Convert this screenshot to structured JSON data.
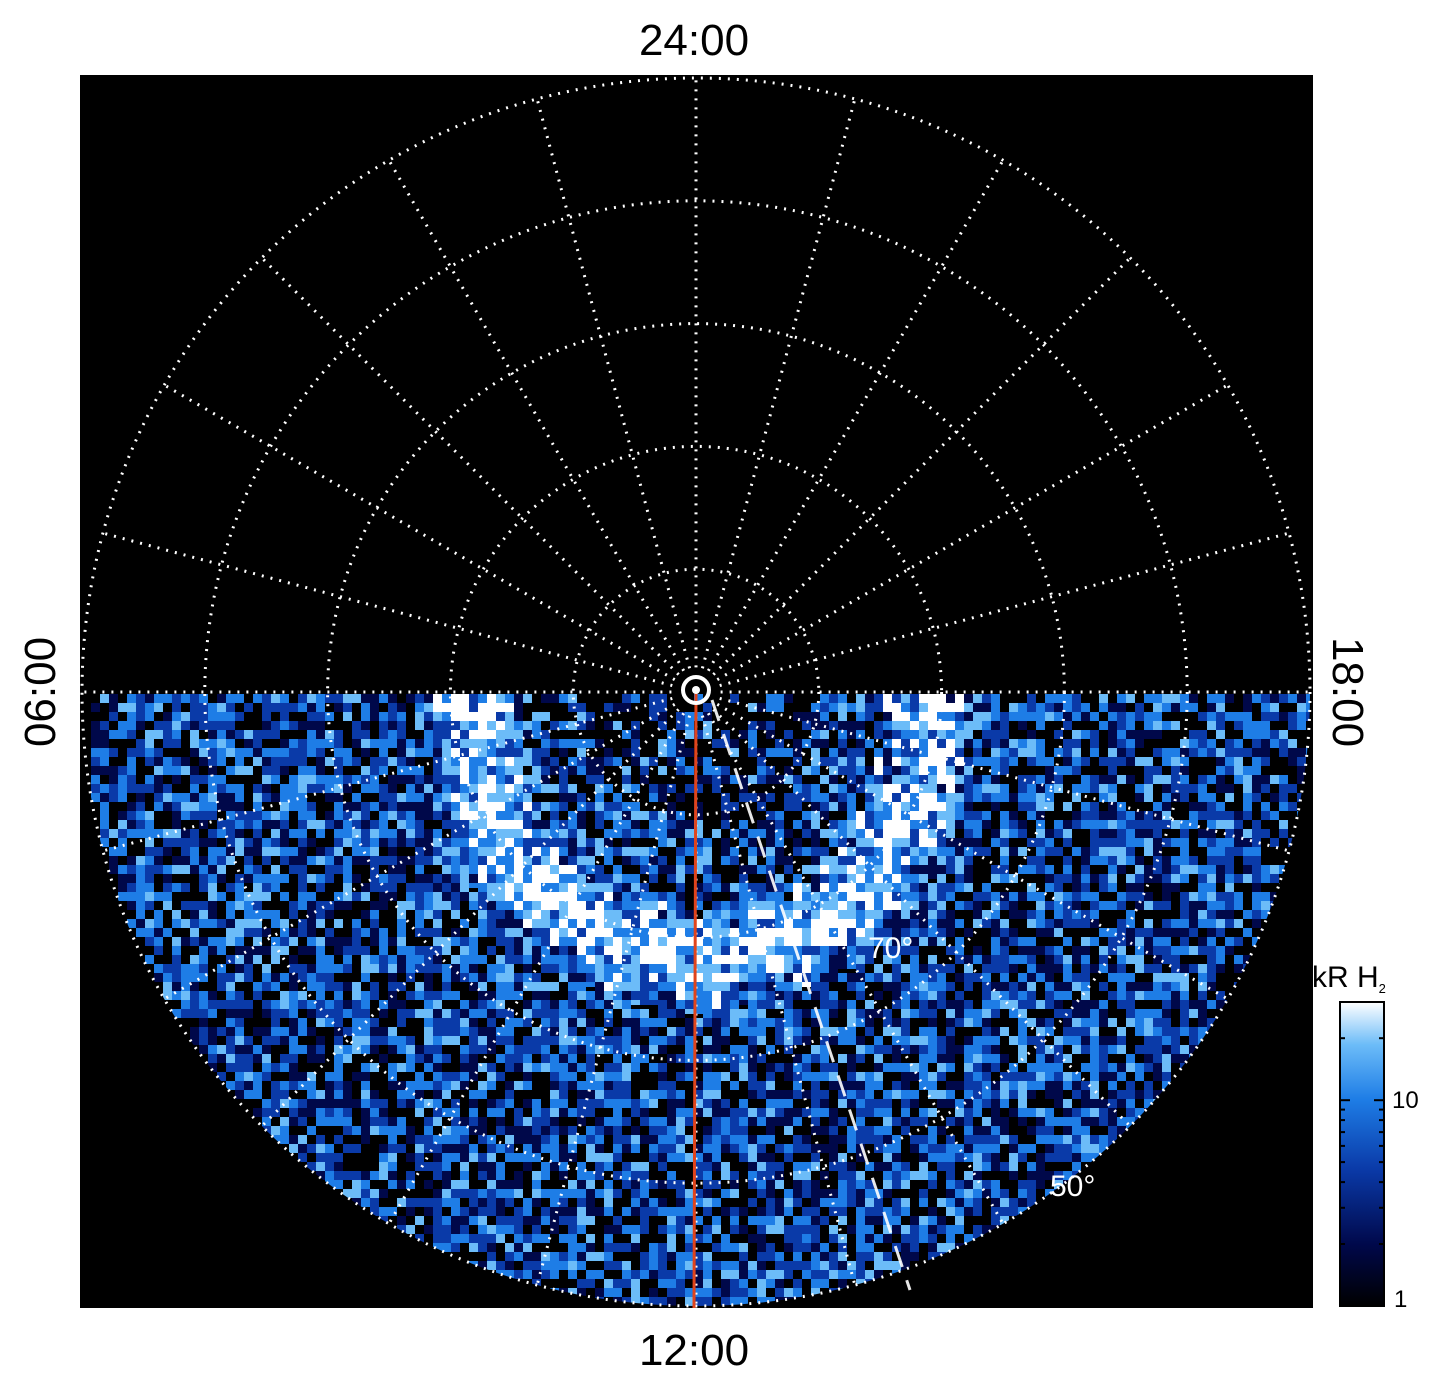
{
  "chart_data": {
    "type": "heatmap",
    "projection": "polar",
    "background": "#000000",
    "local_time_labels": {
      "top": "24:00",
      "bottom": "12:00",
      "left": "06:00",
      "right": "18:00"
    },
    "latitude_labels": [
      {
        "text": "70°",
        "latitude": 70
      },
      {
        "text": "50°",
        "latitude": 50
      }
    ],
    "grid": {
      "visible": true,
      "style": "dotted",
      "color": "#ffffff",
      "latitude_circles": [
        80,
        70,
        60,
        50,
        40
      ],
      "local_time_spoke_hours": [
        0,
        1,
        2,
        3,
        4,
        5,
        6,
        7,
        8,
        9,
        10,
        11,
        12,
        13,
        14,
        15,
        16,
        17,
        18,
        19,
        20,
        21,
        22,
        23
      ]
    },
    "meridian_line": {
      "local_time": "12:00",
      "color": "#e0441c"
    },
    "emission_regions": [
      {
        "description": "auroral oval arc",
        "latitude_range": [
          68,
          76
        ],
        "local_time_range": [
          6,
          18
        ],
        "intensity_kR": 30
      },
      {
        "description": "dayside diffuse emission",
        "latitude_range": [
          40,
          68
        ],
        "local_time_range": [
          7,
          17
        ],
        "intensity_kR": 5
      }
    ],
    "colorbar": {
      "label": "kR H",
      "label_subscript": "2",
      "scale": "log",
      "range": [
        1,
        30
      ],
      "ticks": [
        {
          "value": 1,
          "label": "1"
        },
        {
          "value": 10,
          "label": "10"
        }
      ],
      "colormap": [
        "#000000",
        "#00084a",
        "#0a3aa8",
        "#1e7de6",
        "#6cbcf8",
        "#ffffff"
      ]
    }
  }
}
